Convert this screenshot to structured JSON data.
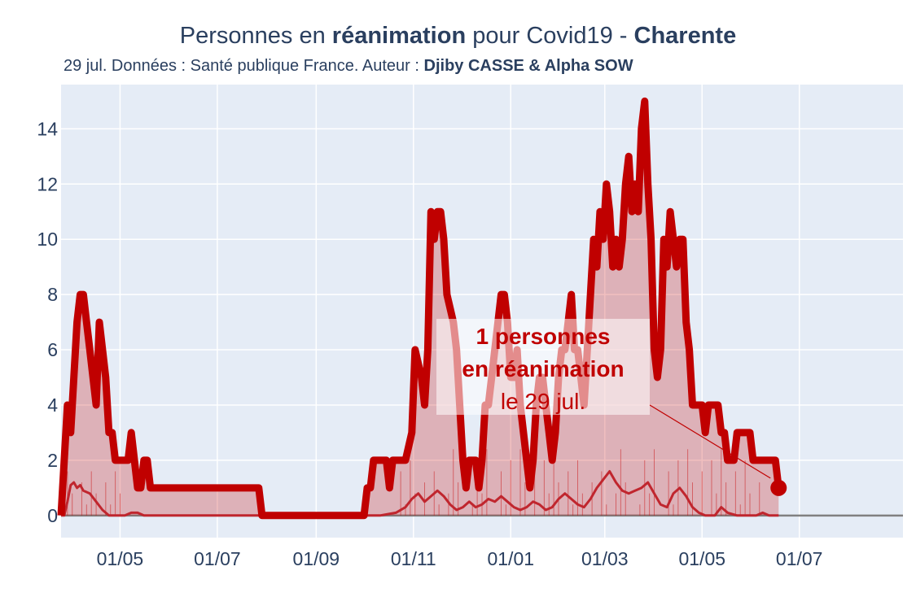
{
  "title": {
    "prefix": "Personnes en ",
    "bold1": "réanimation",
    "middle": " pour Covid19 - ",
    "bold2": "Charente"
  },
  "subtitle": {
    "prefix": "29 jul. Données : Santé publique France. Auteur : ",
    "bold": "Djiby CASSE & Alpha SOW"
  },
  "annotation": {
    "line1": "1 personnes",
    "line2": "en réanimation",
    "line3": "le 29 jul."
  },
  "colors": {
    "plot_bg": "#e5ecf6",
    "line": "#c00000",
    "fill": "rgba(200,0,0,0.25)",
    "grid": "#ffffff",
    "text": "#2a3f5f",
    "baseline": "#808080"
  },
  "chart_data": {
    "type": "area",
    "title": "Personnes en réanimation pour Covid19 - Charente",
    "ylim": [
      -0.8,
      15.6
    ],
    "y_ticks": [
      0,
      2,
      4,
      6,
      8,
      10,
      12,
      14
    ],
    "x_ticks": [
      "01/05",
      "01/07",
      "01/09",
      "01/11",
      "01/01",
      "01/03",
      "01/05",
      "01/07"
    ],
    "x_tick_days": [
      37,
      98,
      160,
      221,
      282,
      341,
      402,
      463
    ],
    "x_range_days": [
      0,
      528
    ],
    "grid": true,
    "legend": "none",
    "series": [
      {
        "role": "reanimation",
        "points": [
          [
            0,
            0
          ],
          [
            2,
            2
          ],
          [
            4,
            4
          ],
          [
            6,
            3
          ],
          [
            8,
            5
          ],
          [
            10,
            7
          ],
          [
            12,
            8
          ],
          [
            14,
            8
          ],
          [
            16,
            7
          ],
          [
            18,
            6
          ],
          [
            20,
            5
          ],
          [
            22,
            4
          ],
          [
            24,
            7
          ],
          [
            26,
            6
          ],
          [
            28,
            5
          ],
          [
            30,
            3
          ],
          [
            32,
            3
          ],
          [
            34,
            2
          ],
          [
            36,
            2
          ],
          [
            38,
            2
          ],
          [
            40,
            2
          ],
          [
            42,
            2
          ],
          [
            44,
            3
          ],
          [
            46,
            2
          ],
          [
            48,
            1
          ],
          [
            50,
            1
          ],
          [
            52,
            2
          ],
          [
            54,
            2
          ],
          [
            56,
            1
          ],
          [
            60,
            1
          ],
          [
            70,
            1
          ],
          [
            80,
            1
          ],
          [
            90,
            1
          ],
          [
            100,
            1
          ],
          [
            110,
            1
          ],
          [
            120,
            1
          ],
          [
            124,
            1
          ],
          [
            126,
            0
          ],
          [
            140,
            0
          ],
          [
            160,
            0
          ],
          [
            180,
            0
          ],
          [
            190,
            0
          ],
          [
            192,
            1
          ],
          [
            194,
            1
          ],
          [
            196,
            2
          ],
          [
            200,
            2
          ],
          [
            204,
            2
          ],
          [
            206,
            1
          ],
          [
            208,
            2
          ],
          [
            212,
            2
          ],
          [
            216,
            2
          ],
          [
            220,
            3
          ],
          [
            222,
            6
          ],
          [
            226,
            5
          ],
          [
            228,
            4
          ],
          [
            230,
            6
          ],
          [
            232,
            11
          ],
          [
            234,
            10
          ],
          [
            236,
            11
          ],
          [
            238,
            11
          ],
          [
            240,
            10
          ],
          [
            242,
            8
          ],
          [
            246,
            7
          ],
          [
            248,
            6
          ],
          [
            250,
            4
          ],
          [
            252,
            2
          ],
          [
            254,
            1
          ],
          [
            256,
            2
          ],
          [
            260,
            2
          ],
          [
            262,
            1
          ],
          [
            264,
            2
          ],
          [
            266,
            4
          ],
          [
            268,
            4
          ],
          [
            270,
            5
          ],
          [
            272,
            6
          ],
          [
            274,
            7
          ],
          [
            276,
            8
          ],
          [
            278,
            8
          ],
          [
            280,
            7
          ],
          [
            282,
            5
          ],
          [
            284,
            5
          ],
          [
            286,
            6
          ],
          [
            288,
            4
          ],
          [
            290,
            3
          ],
          [
            292,
            2
          ],
          [
            294,
            1
          ],
          [
            296,
            2
          ],
          [
            298,
            4
          ],
          [
            300,
            5
          ],
          [
            302,
            5
          ],
          [
            304,
            4
          ],
          [
            306,
            3
          ],
          [
            308,
            2
          ],
          [
            310,
            3
          ],
          [
            312,
            5
          ],
          [
            314,
            6
          ],
          [
            316,
            6
          ],
          [
            318,
            7
          ],
          [
            320,
            8
          ],
          [
            322,
            6
          ],
          [
            324,
            6
          ],
          [
            326,
            5
          ],
          [
            328,
            4
          ],
          [
            330,
            6
          ],
          [
            332,
            8
          ],
          [
            334,
            10
          ],
          [
            336,
            9
          ],
          [
            338,
            11
          ],
          [
            340,
            10
          ],
          [
            342,
            12
          ],
          [
            344,
            11
          ],
          [
            346,
            9
          ],
          [
            348,
            10
          ],
          [
            350,
            9
          ],
          [
            352,
            10
          ],
          [
            354,
            12
          ],
          [
            356,
            13
          ],
          [
            358,
            11
          ],
          [
            360,
            12
          ],
          [
            362,
            11
          ],
          [
            364,
            14
          ],
          [
            366,
            15
          ],
          [
            368,
            12
          ],
          [
            370,
            10
          ],
          [
            372,
            6
          ],
          [
            374,
            5
          ],
          [
            376,
            6
          ],
          [
            378,
            10
          ],
          [
            380,
            9
          ],
          [
            382,
            11
          ],
          [
            384,
            10
          ],
          [
            386,
            9
          ],
          [
            388,
            10
          ],
          [
            390,
            10
          ],
          [
            392,
            7
          ],
          [
            394,
            6
          ],
          [
            396,
            4
          ],
          [
            398,
            4
          ],
          [
            400,
            4
          ],
          [
            402,
            4
          ],
          [
            404,
            3
          ],
          [
            406,
            4
          ],
          [
            408,
            4
          ],
          [
            410,
            4
          ],
          [
            412,
            4
          ],
          [
            414,
            3
          ],
          [
            416,
            3
          ],
          [
            418,
            2
          ],
          [
            420,
            2
          ],
          [
            422,
            2
          ],
          [
            424,
            3
          ],
          [
            426,
            3
          ],
          [
            428,
            3
          ],
          [
            430,
            3
          ],
          [
            432,
            3
          ],
          [
            434,
            2
          ],
          [
            436,
            2
          ],
          [
            438,
            2
          ],
          [
            440,
            2
          ],
          [
            442,
            2
          ],
          [
            444,
            2
          ],
          [
            446,
            2
          ],
          [
            448,
            2
          ],
          [
            450,
            1
          ]
        ]
      },
      {
        "role": "new_admissions",
        "points": [
          [
            0,
            0
          ],
          [
            2,
            0
          ],
          [
            4,
            0.5
          ],
          [
            6,
            1.1
          ],
          [
            8,
            1.2
          ],
          [
            10,
            1
          ],
          [
            12,
            1.1
          ],
          [
            14,
            0.9
          ],
          [
            18,
            0.8
          ],
          [
            22,
            0.5
          ],
          [
            26,
            0.2
          ],
          [
            30,
            0
          ],
          [
            40,
            0
          ],
          [
            44,
            0.1
          ],
          [
            48,
            0.1
          ],
          [
            52,
            0
          ],
          [
            60,
            0
          ],
          [
            120,
            0
          ],
          [
            200,
            0
          ],
          [
            210,
            0.1
          ],
          [
            216,
            0.3
          ],
          [
            220,
            0.6
          ],
          [
            224,
            0.8
          ],
          [
            228,
            0.5
          ],
          [
            232,
            0.7
          ],
          [
            236,
            0.9
          ],
          [
            240,
            0.7
          ],
          [
            244,
            0.4
          ],
          [
            248,
            0.2
          ],
          [
            252,
            0.3
          ],
          [
            256,
            0.5
          ],
          [
            260,
            0.3
          ],
          [
            264,
            0.4
          ],
          [
            268,
            0.6
          ],
          [
            272,
            0.5
          ],
          [
            276,
            0.7
          ],
          [
            280,
            0.5
          ],
          [
            284,
            0.3
          ],
          [
            288,
            0.2
          ],
          [
            292,
            0.3
          ],
          [
            296,
            0.5
          ],
          [
            300,
            0.4
          ],
          [
            304,
            0.2
          ],
          [
            308,
            0.3
          ],
          [
            312,
            0.6
          ],
          [
            316,
            0.8
          ],
          [
            320,
            0.6
          ],
          [
            324,
            0.4
          ],
          [
            328,
            0.3
          ],
          [
            332,
            0.6
          ],
          [
            336,
            1
          ],
          [
            340,
            1.3
          ],
          [
            344,
            1.6
          ],
          [
            348,
            1.2
          ],
          [
            352,
            0.9
          ],
          [
            356,
            0.8
          ],
          [
            360,
            0.9
          ],
          [
            364,
            1
          ],
          [
            368,
            1.2
          ],
          [
            372,
            0.8
          ],
          [
            376,
            0.4
          ],
          [
            380,
            0.3
          ],
          [
            384,
            0.8
          ],
          [
            388,
            1
          ],
          [
            392,
            0.7
          ],
          [
            396,
            0.3
          ],
          [
            400,
            0.1
          ],
          [
            404,
            0
          ],
          [
            410,
            0
          ],
          [
            414,
            0.3
          ],
          [
            418,
            0.1
          ],
          [
            424,
            0
          ],
          [
            436,
            0
          ],
          [
            440,
            0.1
          ],
          [
            444,
            0
          ],
          [
            450,
            0
          ]
        ]
      }
    ],
    "last_point": {
      "day": 450,
      "value": 1
    }
  }
}
